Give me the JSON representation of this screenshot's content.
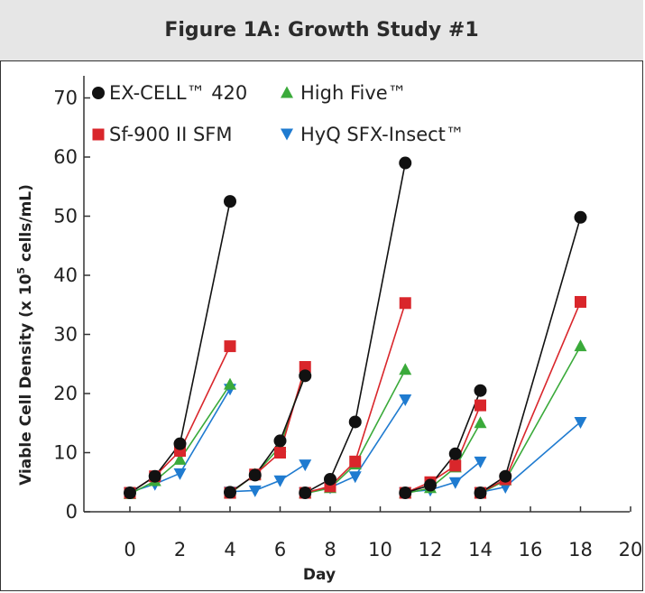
{
  "chart_data": {
    "type": "line",
    "title": "Figure 1A: Growth Study #1",
    "xlabel": "Day",
    "ylabel": "Viable Cell Density (x 10⁵ cells/mL)",
    "xlim": [
      0,
      20
    ],
    "ylim": [
      0,
      70
    ],
    "xticks": [
      "0",
      "2",
      "4",
      "6",
      "8",
      "10",
      "12",
      "14",
      "16",
      "18",
      "20"
    ],
    "yticks": [
      "0",
      "10",
      "20",
      "30",
      "40",
      "50",
      "60",
      "70"
    ],
    "legend_position": "top-left",
    "grid": false,
    "series": [
      {
        "name": "EX-CELL™ 420",
        "color": "#111111",
        "marker": "circle",
        "segments": [
          [
            [
              0,
              3.2
            ],
            [
              1,
              6.0
            ],
            [
              2,
              11.5
            ],
            [
              4,
              52.5
            ]
          ],
          [
            [
              4,
              3.3
            ],
            [
              5,
              6.2
            ],
            [
              6,
              12.0
            ],
            [
              7,
              23.0
            ]
          ],
          [
            [
              7,
              3.2
            ],
            [
              8,
              5.5
            ],
            [
              9,
              15.2
            ],
            [
              11,
              59.0
            ]
          ],
          [
            [
              11,
              3.2
            ],
            [
              12,
              4.5
            ],
            [
              13,
              9.8
            ],
            [
              14,
              20.5
            ]
          ],
          [
            [
              14,
              3.2
            ],
            [
              15,
              6.0
            ],
            [
              18,
              49.8
            ]
          ]
        ]
      },
      {
        "name": "High Five™",
        "color": "#3aaa3a",
        "marker": "triangle-up",
        "segments": [
          [
            [
              0,
              3.0
            ],
            [
              1,
              5.2
            ],
            [
              2,
              8.8
            ],
            [
              4,
              21.5
            ]
          ],
          [
            [
              4,
              3.1
            ],
            [
              5,
              6.3
            ],
            [
              6,
              11.0
            ],
            [
              7,
              24.0
            ]
          ],
          [
            [
              7,
              3.1
            ],
            [
              8,
              4.0
            ],
            [
              9,
              8.0
            ],
            [
              11,
              24.0
            ]
          ],
          [
            [
              11,
              3.1
            ],
            [
              12,
              4.0
            ],
            [
              13,
              7.5
            ],
            [
              14,
              15.0
            ]
          ],
          [
            [
              14,
              3.1
            ],
            [
              15,
              5.3
            ],
            [
              18,
              28.0
            ]
          ]
        ]
      },
      {
        "name": "Sf-900 II SFM",
        "color": "#d9262b",
        "marker": "square",
        "segments": [
          [
            [
              0,
              3.2
            ],
            [
              1,
              6.0
            ],
            [
              2,
              10.3
            ],
            [
              4,
              28.0
            ]
          ],
          [
            [
              4,
              3.2
            ],
            [
              5,
              6.3
            ],
            [
              6,
              10.0
            ],
            [
              7,
              24.5
            ]
          ],
          [
            [
              7,
              3.2
            ],
            [
              8,
              4.3
            ],
            [
              9,
              8.5
            ],
            [
              11,
              35.3
            ]
          ],
          [
            [
              11,
              3.2
            ],
            [
              12,
              5.0
            ],
            [
              13,
              7.8
            ],
            [
              14,
              18.0
            ]
          ],
          [
            [
              14,
              3.2
            ],
            [
              15,
              5.5
            ],
            [
              18,
              35.5
            ]
          ]
        ]
      },
      {
        "name": "HyQ SFX-Insect™",
        "color": "#1f7bd0",
        "marker": "triangle-down",
        "segments": [
          [
            [
              0,
              3.3
            ],
            [
              1,
              4.7
            ],
            [
              2,
              6.5
            ],
            [
              4,
              20.8
            ]
          ],
          [
            [
              4,
              3.4
            ],
            [
              5,
              3.6
            ],
            [
              6,
              5.3
            ],
            [
              7,
              8.0
            ]
          ],
          [
            [
              7,
              3.3
            ],
            [
              8,
              4.1
            ],
            [
              9,
              6.0
            ],
            [
              11,
              19.0
            ]
          ],
          [
            [
              11,
              3.3
            ],
            [
              12,
              3.7
            ],
            [
              13,
              5.0
            ],
            [
              14,
              8.5
            ]
          ],
          [
            [
              14,
              3.3
            ],
            [
              15,
              4.2
            ],
            [
              18,
              15.2
            ]
          ]
        ]
      }
    ]
  }
}
